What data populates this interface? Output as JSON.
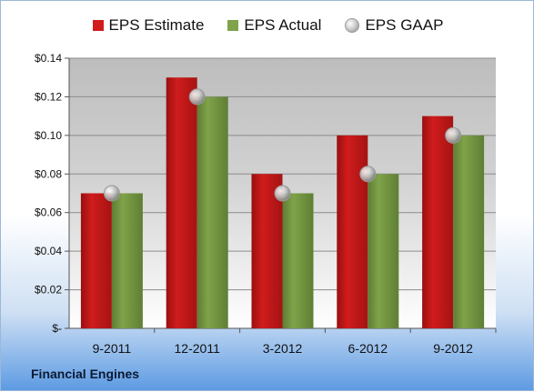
{
  "company_name": "Financial Engines",
  "colors": {
    "estimate": "#d01c1c",
    "actual": "#7fa34a",
    "gaap": "#b8b8b8"
  },
  "chart_data": {
    "type": "bar",
    "title": "",
    "xlabel": "",
    "ylabel": "",
    "categories": [
      "9-2011",
      "12-2011",
      "3-2012",
      "6-2012",
      "9-2012"
    ],
    "series": [
      {
        "name": "EPS Estimate",
        "type": "bar",
        "values": [
          0.07,
          0.13,
          0.08,
          0.1,
          0.11
        ]
      },
      {
        "name": "EPS Actual",
        "type": "bar",
        "values": [
          0.07,
          0.12,
          0.07,
          0.08,
          0.1
        ]
      },
      {
        "name": "EPS GAAP",
        "type": "marker",
        "values": [
          0.07,
          0.12,
          0.07,
          0.08,
          0.1
        ]
      }
    ],
    "yticks": [
      0,
      0.02,
      0.04,
      0.06,
      0.08,
      0.1,
      0.12,
      0.14
    ],
    "ytick_labels": [
      "$-",
      "$0.02",
      "$0.04",
      "$0.06",
      "$0.08",
      "$0.10",
      "$0.12",
      "$0.14"
    ],
    "ylim": [
      0,
      0.14
    ],
    "grid": true,
    "legend": "top-center"
  }
}
